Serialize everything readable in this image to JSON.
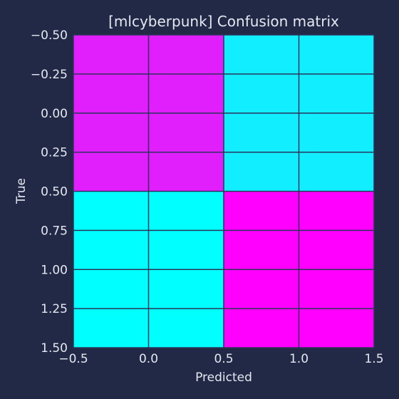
{
  "chart_data": {
    "type": "heatmap",
    "title": "[mlcyberpunk] Confusion matrix",
    "xlabel": "Predicted",
    "ylabel": "True",
    "xlim": [
      -0.5,
      1.5
    ],
    "ylim": [
      1.5,
      -0.5
    ],
    "x_ticks": [
      -0.5,
      0.0,
      0.5,
      1.0,
      1.5
    ],
    "x_tick_labels": [
      "−0.5",
      "0.0",
      "0.5",
      "1.0",
      "1.5"
    ],
    "y_ticks": [
      -0.5,
      -0.25,
      0.0,
      0.25,
      0.5,
      0.75,
      1.0,
      1.25,
      1.5
    ],
    "y_tick_labels": [
      "−0.50",
      "−0.25",
      "0.00",
      "0.25",
      "0.50",
      "0.75",
      "1.00",
      "1.25",
      "1.50"
    ],
    "matrix": [
      [
        "#E11FFD",
        "#11EEFF"
      ],
      [
        "#00FFFF",
        "#FF00FF"
      ]
    ],
    "grid": true
  },
  "colors": {
    "background": "#212946",
    "text": "#E6E8F0",
    "grid": "#2A3459",
    "spine": "#E6E8F0"
  }
}
